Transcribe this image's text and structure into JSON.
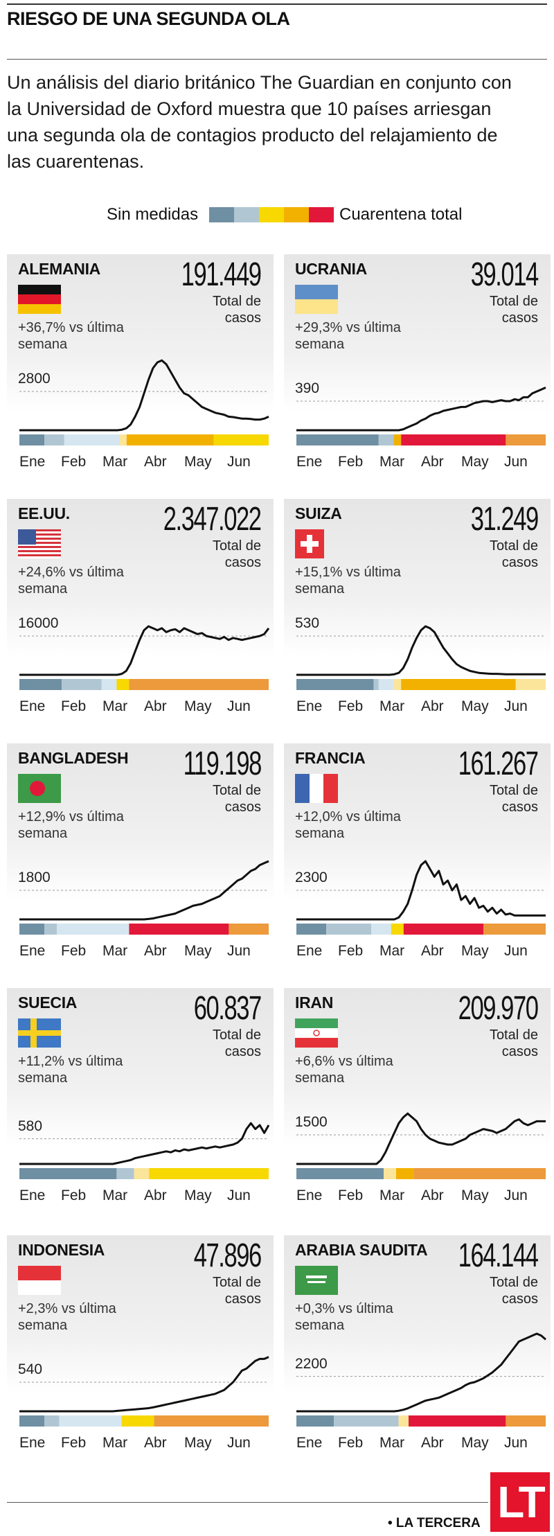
{
  "title": "RIESGO DE UNA SEGUNDA OLA",
  "intro": "Un análisis del diario británico The Guardian en conjunto con la Universidad de Oxford muestra que 10 países arriesgan una segunda ola de contagios producto del relajamiento de las cuarentenas.",
  "legend": {
    "left_label": "Sin medidas",
    "right_label": "Cuarentena total",
    "scale_colors": [
      "#6f8fa3",
      "#b0c6d3",
      "#f7d800",
      "#f2b100",
      "#e2183a"
    ]
  },
  "months": [
    "Ene",
    "Feb",
    "Mar",
    "Abr",
    "May",
    "Jun"
  ],
  "total_label": "Total de casos",
  "level_colors": {
    "0": "#6f8fa3",
    "1": "#b0c6d3",
    "2": "#d5e6f0",
    "3": "#fbe59b",
    "4": "#f7d800",
    "5": "#f2b100",
    "6": "#ec9a3c",
    "7": "#e2183a"
  },
  "chart_data": [
    {
      "type": "line",
      "country": "ALEMANIA",
      "total": "191.449",
      "change": "+36,7% vs última semana",
      "ref_value": "2800",
      "flag": "de",
      "series": [
        0,
        0,
        0,
        0,
        0,
        0,
        0,
        0,
        0,
        0,
        0,
        0,
        0,
        0,
        0,
        0,
        0,
        0,
        0,
        0,
        0,
        0,
        0,
        0.03,
        0.1,
        0.3,
        0.7,
        1.2,
        1.9,
        2.6,
        3.2,
        3.5,
        3.6,
        3.4,
        3.0,
        2.6,
        2.2,
        1.9,
        1.8,
        1.6,
        1.4,
        1.2,
        1.1,
        1.0,
        0.9,
        0.85,
        0.8,
        0.7,
        0.68,
        0.64,
        0.6,
        0.6,
        0.58,
        0.55,
        0.55,
        0.6,
        0.7
      ],
      "ref": 2,
      "levels": [
        [
          0,
          0.1,
          0
        ],
        [
          0.1,
          0.18,
          1
        ],
        [
          0.18,
          0.4,
          2
        ],
        [
          0.4,
          0.43,
          3
        ],
        [
          0.43,
          0.78,
          5
        ],
        [
          0.78,
          1,
          4
        ]
      ]
    },
    {
      "type": "line",
      "country": "UCRANIA",
      "total": "39.014",
      "change": "+29,3% vs última semana",
      "ref_value": "390",
      "flag": "ua",
      "series": [
        0,
        0,
        0,
        0,
        0,
        0,
        0,
        0,
        0,
        0,
        0,
        0,
        0,
        0,
        0,
        0,
        0,
        0,
        0,
        0,
        0,
        0,
        0,
        0,
        0.05,
        0.15,
        0.25,
        0.35,
        0.5,
        0.6,
        0.75,
        0.85,
        0.9,
        1.0,
        1.05,
        1.1,
        1.15,
        1.2,
        1.2,
        1.3,
        1.4,
        1.45,
        1.5,
        1.5,
        1.45,
        1.5,
        1.55,
        1.5,
        1.5,
        1.6,
        1.55,
        1.7,
        1.7,
        1.9,
        2.0,
        2.1,
        2.2
      ],
      "ref": 1.5,
      "levels": [
        [
          0,
          0.33,
          0
        ],
        [
          0.33,
          0.39,
          1
        ],
        [
          0.39,
          0.42,
          5
        ],
        [
          0.42,
          0.84,
          7
        ],
        [
          0.84,
          1,
          6
        ]
      ]
    },
    {
      "type": "line",
      "country": "EE.UU.",
      "total": "2.347.022",
      "change": "+24,6% vs última semana",
      "ref_value": "16000",
      "flag": "us",
      "series": [
        0,
        0,
        0,
        0,
        0,
        0,
        0,
        0,
        0,
        0,
        0,
        0,
        0,
        0,
        0,
        0,
        0,
        0,
        0,
        0,
        0,
        0,
        0,
        0.05,
        0.2,
        0.6,
        1.2,
        1.8,
        2.3,
        2.5,
        2.4,
        2.3,
        2.4,
        2.2,
        2.3,
        2.35,
        2.2,
        2.4,
        2.3,
        2.2,
        2.1,
        2.15,
        2.0,
        1.95,
        1.9,
        1.85,
        1.95,
        1.8,
        1.9,
        1.85,
        1.8,
        1.85,
        1.9,
        1.95,
        2.0,
        2.1,
        2.4
      ],
      "ref": 2,
      "levels": [
        [
          0,
          0.17,
          0
        ],
        [
          0.17,
          0.33,
          1
        ],
        [
          0.33,
          0.39,
          2
        ],
        [
          0.39,
          0.44,
          4
        ],
        [
          0.44,
          1,
          6
        ]
      ]
    },
    {
      "type": "line",
      "country": "SUIZA",
      "total": "31.249",
      "change": "+15,1% vs última semana",
      "ref_value": "530",
      "flag": "ch",
      "series": [
        0,
        0,
        0,
        0,
        0,
        0,
        0,
        0,
        0,
        0,
        0,
        0,
        0,
        0,
        0,
        0,
        0,
        0,
        0,
        0,
        0,
        0,
        0.03,
        0.1,
        0.35,
        0.8,
        1.4,
        1.9,
        2.3,
        2.5,
        2.4,
        2.2,
        1.8,
        1.4,
        1.1,
        0.8,
        0.55,
        0.4,
        0.3,
        0.2,
        0.15,
        0.1,
        0.08,
        0.06,
        0.05,
        0.05,
        0.04,
        0.03,
        0.03,
        0.03,
        0.03,
        0.03,
        0.03,
        0.03,
        0.03,
        0.03,
        0.03
      ],
      "ref": 2,
      "levels": [
        [
          0,
          0.31,
          0
        ],
        [
          0.31,
          0.33,
          1
        ],
        [
          0.33,
          0.39,
          2
        ],
        [
          0.39,
          0.42,
          3
        ],
        [
          0.42,
          0.88,
          5
        ],
        [
          0.88,
          1,
          3
        ]
      ]
    },
    {
      "type": "line",
      "country": "BANGLADESH",
      "total": "119.198",
      "change": "+12,9% vs última semana",
      "ref_value": "1800",
      "flag": "bd",
      "series": [
        0,
        0,
        0,
        0,
        0,
        0,
        0,
        0,
        0,
        0,
        0,
        0,
        0,
        0,
        0,
        0,
        0,
        0,
        0,
        0,
        0,
        0,
        0,
        0,
        0,
        0,
        0,
        0,
        0,
        0.02,
        0.05,
        0.1,
        0.15,
        0.2,
        0.25,
        0.3,
        0.4,
        0.5,
        0.6,
        0.7,
        0.75,
        0.8,
        0.9,
        1.0,
        1.1,
        1.2,
        1.4,
        1.6,
        1.8,
        2.0,
        2.1,
        2.3,
        2.5,
        2.6,
        2.8,
        2.9,
        3.0
      ],
      "ref": 1.5,
      "levels": [
        [
          0,
          0.1,
          0
        ],
        [
          0.1,
          0.15,
          1
        ],
        [
          0.15,
          0.44,
          2
        ],
        [
          0.44,
          0.84,
          7
        ],
        [
          0.84,
          1,
          6
        ]
      ]
    },
    {
      "type": "line",
      "country": "FRANCIA",
      "total": "161.267",
      "change": "+12,0% vs última semana",
      "ref_value": "2300",
      "flag": "fr",
      "series": [
        0,
        0,
        0,
        0,
        0,
        0,
        0,
        0,
        0,
        0,
        0,
        0,
        0,
        0,
        0,
        0,
        0,
        0,
        0,
        0,
        0,
        0,
        0,
        0.1,
        0.4,
        0.8,
        1.5,
        2.3,
        2.8,
        3.0,
        2.6,
        2.2,
        2.5,
        1.8,
        2.0,
        1.5,
        1.8,
        1.0,
        1.2,
        0.8,
        1.1,
        0.6,
        0.7,
        0.4,
        0.6,
        0.3,
        0.5,
        0.25,
        0.3,
        0.2,
        0.2,
        0.2,
        0.2,
        0.2,
        0.2,
        0.2,
        0.2
      ],
      "ref": 1.5,
      "levels": [
        [
          0,
          0.12,
          0
        ],
        [
          0.12,
          0.3,
          1
        ],
        [
          0.3,
          0.38,
          2
        ],
        [
          0.38,
          0.43,
          4
        ],
        [
          0.43,
          0.75,
          7
        ],
        [
          0.75,
          1,
          6
        ]
      ]
    },
    {
      "type": "line",
      "country": "SUECIA",
      "total": "60.837",
      "change": "+11,2% vs última semana",
      "ref_value": "580",
      "flag": "se",
      "series": [
        0,
        0,
        0,
        0,
        0,
        0,
        0,
        0,
        0,
        0,
        0,
        0,
        0,
        0,
        0,
        0,
        0,
        0,
        0,
        0,
        0,
        0,
        0.05,
        0.1,
        0.15,
        0.2,
        0.3,
        0.35,
        0.4,
        0.45,
        0.5,
        0.55,
        0.6,
        0.65,
        0.6,
        0.7,
        0.65,
        0.75,
        0.7,
        0.75,
        0.8,
        0.85,
        0.8,
        0.85,
        0.9,
        0.85,
        0.9,
        0.95,
        1.0,
        1.1,
        1.3,
        1.8,
        2.1,
        1.8,
        2.0,
        1.6,
        2.0
      ],
      "ref": 1.3,
      "levels": [
        [
          0,
          0.39,
          0
        ],
        [
          0.39,
          0.46,
          1
        ],
        [
          0.46,
          0.52,
          3
        ],
        [
          0.52,
          1,
          4
        ]
      ]
    },
    {
      "type": "line",
      "country": "IRAN",
      "total": "209.970",
      "change": "+6,6% vs última semana",
      "ref_value": "1500",
      "flag": "ir",
      "series": [
        0,
        0,
        0,
        0,
        0,
        0,
        0,
        0,
        0,
        0,
        0,
        0,
        0,
        0,
        0,
        0,
        0,
        0,
        0,
        0.2,
        0.6,
        1.1,
        1.6,
        2.1,
        2.4,
        2.6,
        2.4,
        2.2,
        1.8,
        1.5,
        1.3,
        1.2,
        1.1,
        1.05,
        1.0,
        1.0,
        1.1,
        1.2,
        1.3,
        1.5,
        1.6,
        1.7,
        1.8,
        1.75,
        1.7,
        1.6,
        1.7,
        1.8,
        2.0,
        2.2,
        2.3,
        2.1,
        2.0,
        2.1,
        2.2,
        2.2,
        2.2
      ],
      "ref": 1.5,
      "levels": [
        [
          0,
          0.35,
          0
        ],
        [
          0.35,
          0.4,
          3
        ],
        [
          0.4,
          0.47,
          5
        ],
        [
          0.47,
          1,
          6
        ]
      ]
    },
    {
      "type": "line",
      "country": "INDONESIA",
      "total": "47.896",
      "change": "+2,3% vs última semana",
      "ref_value": "540",
      "flag": "id",
      "series": [
        0,
        0,
        0,
        0,
        0,
        0,
        0,
        0,
        0,
        0,
        0,
        0,
        0,
        0,
        0,
        0,
        0,
        0,
        0,
        0,
        0,
        0,
        0.02,
        0.04,
        0.06,
        0.08,
        0.1,
        0.12,
        0.14,
        0.16,
        0.2,
        0.25,
        0.3,
        0.35,
        0.4,
        0.45,
        0.5,
        0.55,
        0.6,
        0.65,
        0.7,
        0.75,
        0.8,
        0.85,
        0.9,
        1.0,
        1.1,
        1.3,
        1.5,
        1.8,
        2.1,
        2.2,
        2.4,
        2.6,
        2.7,
        2.7,
        2.8
      ],
      "ref": 1.5,
      "levels": [
        [
          0,
          0.1,
          0
        ],
        [
          0.1,
          0.16,
          1
        ],
        [
          0.16,
          0.41,
          2
        ],
        [
          0.41,
          0.54,
          4
        ],
        [
          0.54,
          1,
          6
        ]
      ]
    },
    {
      "type": "line",
      "country": "ARABIA SAUDITA",
      "total": "164.144",
      "change": "+0,3% vs última semana",
      "ref_value": "2200",
      "flag": "sa",
      "series": [
        0,
        0,
        0,
        0,
        0,
        0,
        0,
        0,
        0,
        0,
        0,
        0,
        0,
        0,
        0,
        0,
        0,
        0,
        0,
        0,
        0,
        0,
        0,
        0.03,
        0.08,
        0.15,
        0.25,
        0.35,
        0.45,
        0.55,
        0.6,
        0.65,
        0.7,
        0.8,
        0.9,
        1.0,
        1.1,
        1.2,
        1.35,
        1.45,
        1.5,
        1.6,
        1.7,
        1.85,
        2.0,
        2.2,
        2.4,
        2.7,
        3.0,
        3.3,
        3.6,
        3.7,
        3.8,
        3.9,
        4.0,
        3.9,
        3.7
      ],
      "ref": 1.8,
      "levels": [
        [
          0,
          0.15,
          0
        ],
        [
          0.15,
          0.41,
          1
        ],
        [
          0.41,
          0.45,
          3
        ],
        [
          0.45,
          0.84,
          7
        ],
        [
          0.84,
          1,
          6
        ]
      ]
    }
  ],
  "source": "• LA TERCERA",
  "logo": "LT"
}
